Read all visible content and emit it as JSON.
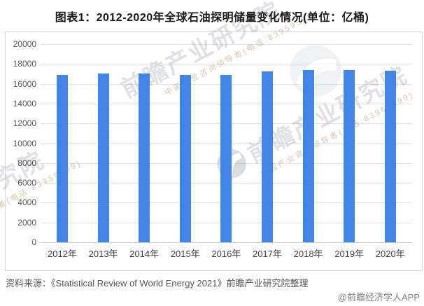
{
  "title": "图表1：2012-2020年全球石油探明储量变化情况(单位：亿桶)",
  "chart_data": {
    "type": "bar",
    "title": "图表1：2012-2020年全球石油探明储量变化情况(单位：亿桶)",
    "categories": [
      "2012年",
      "2013年",
      "2014年",
      "2015年",
      "2016年",
      "2017年",
      "2018年",
      "2019年",
      "2020年"
    ],
    "values": [
      16900,
      17000,
      17050,
      16900,
      16900,
      17250,
      17350,
      17350,
      17300
    ],
    "unit": "亿桶",
    "xlabel": "",
    "ylabel": "",
    "ylim": [
      0,
      20000
    ],
    "ytick_step": 2000,
    "yticks": [
      "0",
      "2000",
      "4000",
      "6000",
      "8000",
      "10000",
      "12000",
      "14000",
      "16000",
      "18000",
      "20000"
    ],
    "grid": true,
    "legend": false,
    "bar_color": "#4285E4"
  },
  "watermark": {
    "brand": "前瞻产业研究院",
    "tagline": "中国产业咨询领导者(电话:83959599)",
    "logo": "qianzhan-logo-icon"
  },
  "footer": {
    "source": "资料来源：《Statistical Review of World Energy 2021》前瞻产业研究院整理",
    "credit": "@前瞻经济学人APP"
  }
}
